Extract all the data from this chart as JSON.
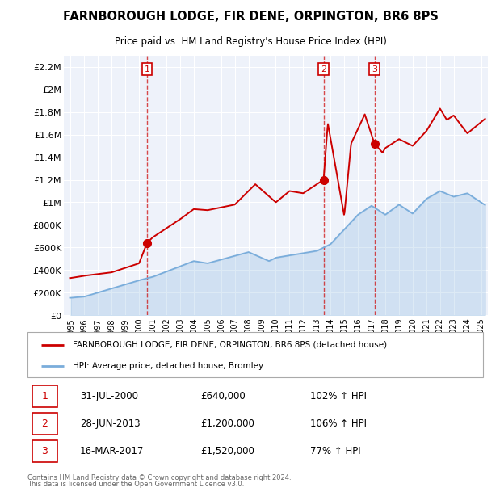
{
  "title": "FARNBOROUGH LODGE, FIR DENE, ORPINGTON, BR6 8PS",
  "subtitle": "Price paid vs. HM Land Registry's House Price Index (HPI)",
  "background_color": "#ffffff",
  "plot_bg_color": "#eef2fa",
  "grid_color": "#ffffff",
  "ylim": [
    0,
    2300000
  ],
  "yticks": [
    0,
    200000,
    400000,
    600000,
    800000,
    1000000,
    1200000,
    1400000,
    1600000,
    1800000,
    2000000,
    2200000
  ],
  "ytick_labels": [
    "£0",
    "£200K",
    "£400K",
    "£600K",
    "£800K",
    "£1M",
    "£1.2M",
    "£1.4M",
    "£1.6M",
    "£1.8M",
    "£2M",
    "£2.2M"
  ],
  "sale_dates": [
    2000.58,
    2013.49,
    2017.21
  ],
  "sale_prices": [
    640000,
    1200000,
    1520000
  ],
  "sale_labels": [
    "1",
    "2",
    "3"
  ],
  "sale_date_strings": [
    "31-JUL-2000",
    "28-JUN-2013",
    "16-MAR-2017"
  ],
  "sale_price_strings": [
    "£640,000",
    "£1,200,000",
    "£1,520,000"
  ],
  "sale_pct_strings": [
    "102% ↑ HPI",
    "106% ↑ HPI",
    "77% ↑ HPI"
  ],
  "red_color": "#cc0000",
  "blue_color": "#7aaddb",
  "legend_house_label": "FARNBOROUGH LODGE, FIR DENE, ORPINGTON, BR6 8PS (detached house)",
  "legend_hpi_label": "HPI: Average price, detached house, Bromley",
  "footer1": "Contains HM Land Registry data © Crown copyright and database right 2024.",
  "footer2": "This data is licensed under the Open Government Licence v3.0.",
  "xmin": 1994.5,
  "xmax": 2025.5
}
